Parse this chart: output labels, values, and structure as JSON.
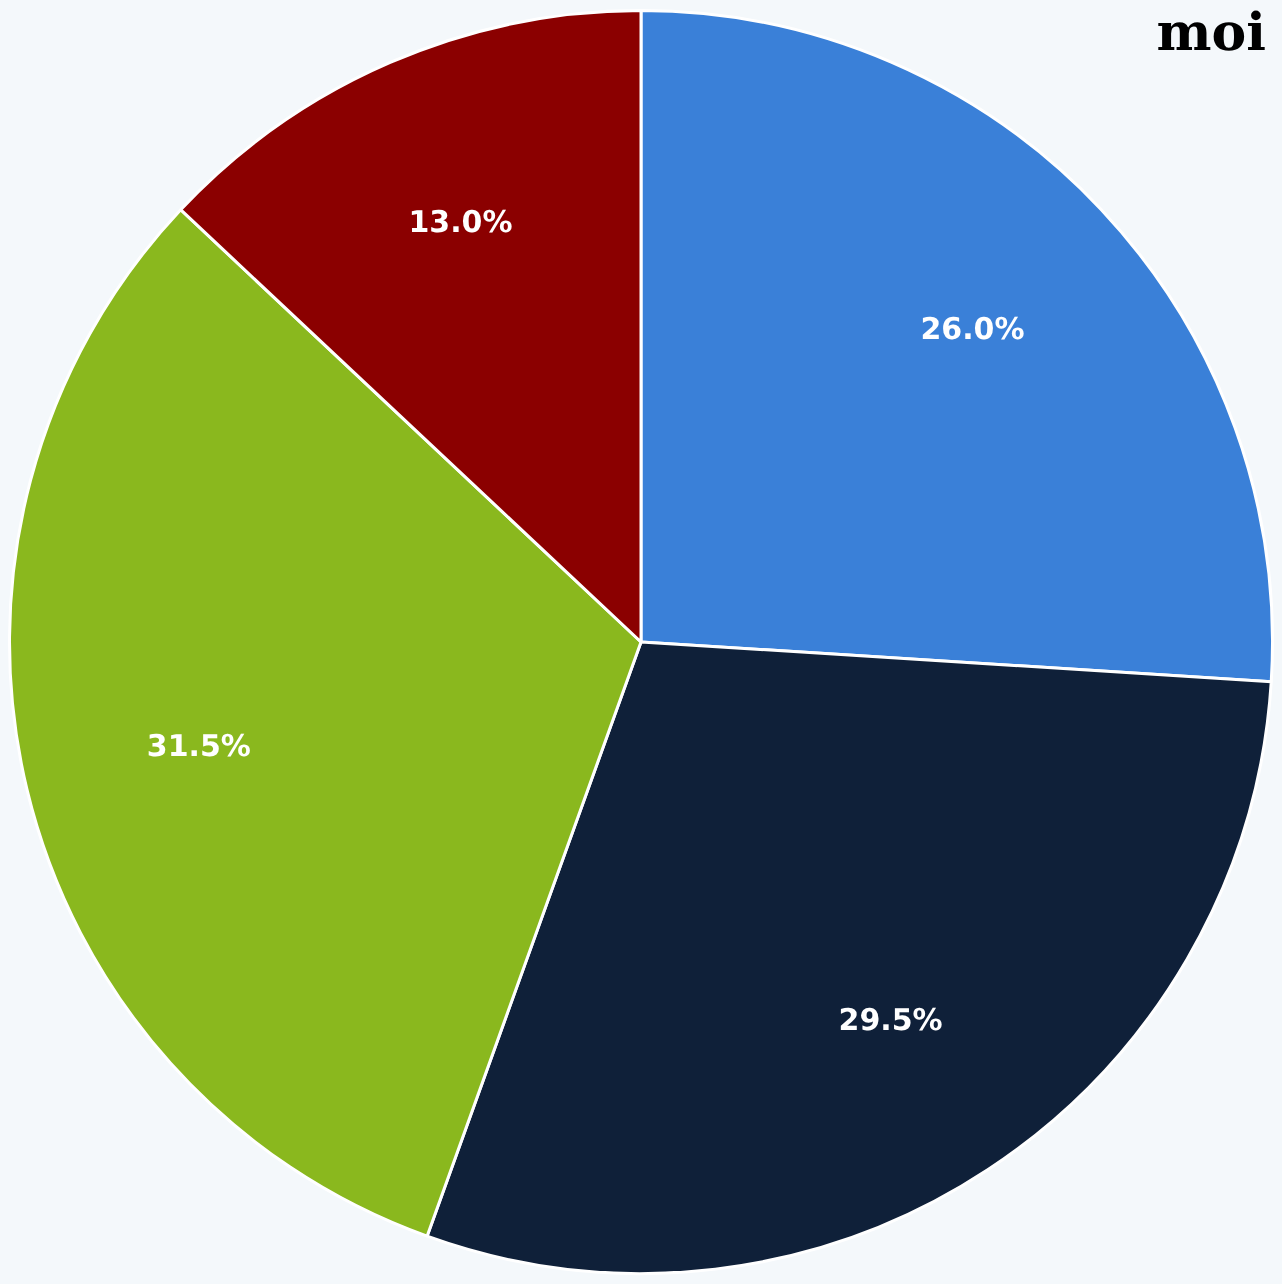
{
  "chart_data": {
    "type": "pie",
    "categories": [
      null,
      null,
      null,
      null
    ],
    "values": [
      26.0,
      29.5,
      31.5,
      13.0
    ],
    "colors": [
      "#3a80d8",
      "#0f2039",
      "#8ab81e",
      "#8b0000"
    ],
    "value_labels": [
      "26.0%",
      "29.5%",
      "31.5%",
      "13.0%"
    ],
    "annotations": [
      "moi"
    ]
  }
}
